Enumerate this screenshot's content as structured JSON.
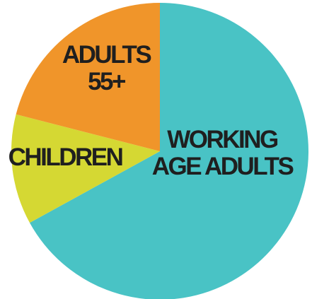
{
  "chart_data": {
    "type": "pie",
    "title": "",
    "legend": "none",
    "start_angle_deg": 0,
    "direction": "clockwise",
    "slices": [
      {
        "label": "WORKING AGE ADULTS",
        "label_lines": [
          "WORKING",
          "AGE ADULTS"
        ],
        "value": 67,
        "color": "#49c3c5"
      },
      {
        "label": "CHILDREN",
        "label_lines": [
          "CHILDREN"
        ],
        "value": 12,
        "color": "#d5d833"
      },
      {
        "label": "ADULTS 55+",
        "label_lines": [
          "ADULTS",
          "55+"
        ],
        "value": 21,
        "color": "#f0952a"
      }
    ]
  }
}
